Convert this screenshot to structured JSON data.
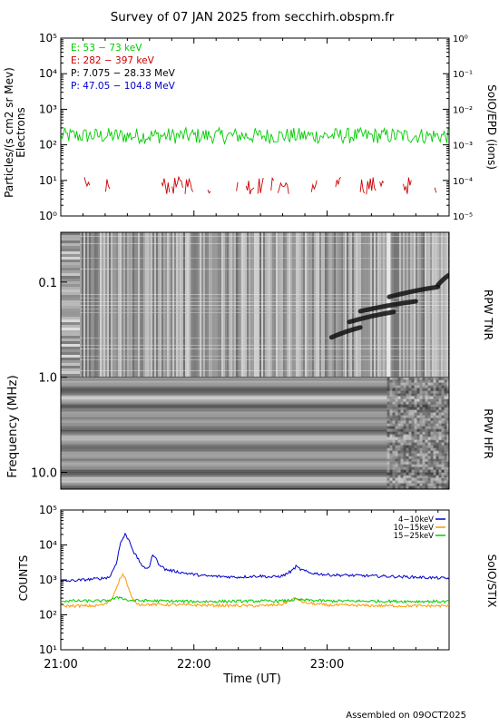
{
  "title": "Survey of 07 JAN 2025 from secchirh.obspm.fr",
  "footer": "Assembled on 09OCT2025",
  "x_axis": {
    "label": "Time (UT)",
    "range_minutes": [
      0,
      175
    ],
    "ticks": [
      {
        "label": "21:00",
        "value": 0
      },
      {
        "label": "22:00",
        "value": 60
      },
      {
        "label": "23:00",
        "value": 120
      }
    ]
  },
  "chart_data": [
    {
      "type": "line",
      "panel": "epd",
      "ylabel": "Particles/(s cm2 sr Mev)",
      "ylabel_2": "Electrons",
      "right_label": "SoIO/EPD (ions)",
      "ylim": [
        1,
        100000
      ],
      "yscale": "log",
      "y_ticks": [
        {
          "label": "10⁰",
          "value": 1
        },
        {
          "label": "10¹",
          "value": 10
        },
        {
          "label": "10²",
          "value": 100
        },
        {
          "label": "10³",
          "value": 1000
        },
        {
          "label": "10⁴",
          "value": 10000
        },
        {
          "label": "10⁵",
          "value": 100000
        }
      ],
      "right_ylim": [
        1e-05,
        1
      ],
      "right_ticks": [
        {
          "label": "10⁰",
          "value": 1
        },
        {
          "label": "10⁻¹",
          "value": 0.1
        },
        {
          "label": "10⁻²",
          "value": 0.01
        },
        {
          "label": "10⁻³",
          "value": 0.001
        },
        {
          "label": "10⁻⁴",
          "value": 0.0001
        },
        {
          "label": "10⁻⁵",
          "value": 1e-05
        }
      ],
      "legend_placement": "top-left",
      "legend": [
        {
          "name": "E: 53 − 73 keV",
          "color": "#00cc00"
        },
        {
          "name": "E: 282 − 397 keV",
          "color": "#cc0000"
        },
        {
          "name": "P: 7.075 − 28.33 MeV",
          "color": "#000000"
        },
        {
          "name": "P: 47.05 − 104.8 MeV",
          "color": "#0000cc"
        }
      ],
      "series": [
        {
          "name": "E: 53 − 73 keV",
          "color": "#00cc00",
          "level": 180,
          "spread": 0.45
        },
        {
          "name": "E: 282 − 397 keV",
          "color": "#cc0000",
          "level": 6,
          "spread": 0.5,
          "intermittent": true
        }
      ]
    },
    {
      "type": "heatmap",
      "panel": "rpw",
      "ylabel": "Frequency (MHz)",
      "yscale": "log",
      "ylim": [
        0.03,
        15
      ],
      "y_ticks": [
        {
          "label": "0.1",
          "value": 0.1
        },
        {
          "label": "1.0",
          "value": 1.0
        },
        {
          "label": "10.0",
          "value": 10.0
        }
      ],
      "sections": [
        {
          "name": "RPW TNR",
          "range": [
            0.03,
            1.0
          ]
        },
        {
          "name": "RPW HFR",
          "range": [
            1.0,
            15
          ]
        }
      ],
      "bursts": [
        {
          "t_start": 170,
          "t_end": 175,
          "f": 0.09
        },
        {
          "t_start": 148,
          "t_end": 170,
          "f": 0.12
        },
        {
          "t_start": 135,
          "t_end": 160,
          "f": 0.17
        },
        {
          "t_start": 130,
          "t_end": 150,
          "f": 0.22
        },
        {
          "t_start": 122,
          "t_end": 135,
          "f": 0.32
        }
      ]
    },
    {
      "type": "line",
      "panel": "stix",
      "ylabel": "COUNTS",
      "right_label": "SoIO/STIX",
      "ylim": [
        10,
        100000
      ],
      "yscale": "log",
      "y_ticks": [
        {
          "label": "10¹",
          "value": 10
        },
        {
          "label": "10²",
          "value": 100
        },
        {
          "label": "10³",
          "value": 1000
        },
        {
          "label": "10⁴",
          "value": 10000
        },
        {
          "label": "10⁵",
          "value": 100000
        }
      ],
      "legend_placement": "top-right",
      "legend": [
        {
          "name": "4−10keV",
          "color": "#0000cc"
        },
        {
          "name": "10−15keV",
          "color": "#ff9900"
        },
        {
          "name": "15−25keV",
          "color": "#00cc00"
        }
      ],
      "series": [
        {
          "name": "4−10keV",
          "color": "#0000cc",
          "points": [
            [
              0,
              900
            ],
            [
              10,
              1000
            ],
            [
              18,
              1100
            ],
            [
              22,
              1200
            ],
            [
              25,
              3000
            ],
            [
              27,
              12000
            ],
            [
              29,
              20000
            ],
            [
              31,
              13000
            ],
            [
              33,
              6000
            ],
            [
              36,
              3000
            ],
            [
              38,
              2000
            ],
            [
              40,
              2500
            ],
            [
              41,
              4500
            ],
            [
              42,
              5000
            ],
            [
              44,
              3000
            ],
            [
              47,
              2000
            ],
            [
              55,
              1600
            ],
            [
              65,
              1300
            ],
            [
              80,
              1200
            ],
            [
              90,
              1300
            ],
            [
              95,
              1200
            ],
            [
              100,
              1300
            ],
            [
              104,
              1800
            ],
            [
              106,
              2400
            ],
            [
              108,
              2000
            ],
            [
              112,
              1600
            ],
            [
              120,
              1400
            ],
            [
              140,
              1300
            ],
            [
              160,
              1200
            ],
            [
              175,
              1100
            ]
          ]
        },
        {
          "name": "10−15keV",
          "color": "#ff9900",
          "points": [
            [
              0,
              180
            ],
            [
              15,
              180
            ],
            [
              20,
              200
            ],
            [
              23,
              280
            ],
            [
              25,
              600
            ],
            [
              27,
              1200
            ],
            [
              28,
              1400
            ],
            [
              29,
              1200
            ],
            [
              30,
              700
            ],
            [
              32,
              300
            ],
            [
              35,
              200
            ],
            [
              60,
              190
            ],
            [
              90,
              180
            ],
            [
              100,
              200
            ],
            [
              104,
              270
            ],
            [
              106,
              300
            ],
            [
              110,
              220
            ],
            [
              120,
              190
            ],
            [
              150,
              180
            ],
            [
              175,
              180
            ]
          ]
        },
        {
          "name": "15−25keV",
          "color": "#00cc00",
          "points": [
            [
              0,
              250
            ],
            [
              20,
              250
            ],
            [
              25,
              300
            ],
            [
              27,
              320
            ],
            [
              30,
              260
            ],
            [
              60,
              240
            ],
            [
              100,
              250
            ],
            [
              106,
              270
            ],
            [
              120,
              250
            ],
            [
              175,
              240
            ]
          ]
        }
      ]
    }
  ]
}
